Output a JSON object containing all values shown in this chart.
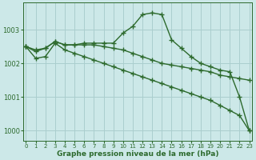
{
  "line1": {
    "x": [
      0,
      1,
      2,
      3,
      4,
      5,
      6,
      7,
      8,
      9,
      10,
      11,
      12,
      13,
      14,
      15,
      16,
      17,
      18,
      19,
      20,
      21,
      22,
      23
    ],
    "y": [
      1002.5,
      1002.35,
      1002.45,
      1002.65,
      1002.55,
      1002.55,
      1002.6,
      1002.6,
      1002.6,
      1002.6,
      1002.9,
      1003.1,
      1003.45,
      1003.5,
      1003.45,
      1002.7,
      1002.45,
      1002.2,
      1002.0,
      1001.9,
      1001.8,
      1001.75,
      1001.0,
      1000.0
    ]
  },
  "line2": {
    "x": [
      0,
      1,
      2,
      3,
      4,
      5,
      6,
      7,
      8,
      9,
      10,
      11,
      12,
      13,
      14,
      15,
      16,
      17,
      18,
      19,
      20,
      21,
      22,
      23
    ],
    "y": [
      1002.5,
      1002.4,
      1002.45,
      1002.65,
      1002.55,
      1002.55,
      1002.55,
      1002.55,
      1002.5,
      1002.45,
      1002.4,
      1002.3,
      1002.2,
      1002.1,
      1002.0,
      1001.95,
      1001.9,
      1001.85,
      1001.8,
      1001.75,
      1001.65,
      1001.6,
      1001.55,
      1001.5
    ]
  },
  "line3": {
    "x": [
      0,
      1,
      2,
      3,
      4,
      5,
      6,
      7,
      8,
      9,
      10,
      11,
      12,
      13,
      14,
      15,
      16,
      17,
      18,
      19,
      20,
      21,
      22,
      23
    ],
    "y": [
      1002.5,
      1002.15,
      1002.2,
      1002.6,
      1002.4,
      1002.3,
      1002.2,
      1002.1,
      1002.0,
      1001.9,
      1001.8,
      1001.7,
      1001.6,
      1001.5,
      1001.4,
      1001.3,
      1001.2,
      1001.1,
      1001.0,
      1000.9,
      1000.75,
      1000.6,
      1000.45,
      1000.0
    ]
  },
  "color": "#2d6a2d",
  "bg_color": "#cce8e8",
  "grid_color": "#aacece",
  "xlim": [
    -0.3,
    23.3
  ],
  "ylim": [
    999.7,
    1003.8
  ],
  "yticks": [
    1000,
    1001,
    1002,
    1003
  ],
  "xticks": [
    0,
    1,
    2,
    3,
    4,
    5,
    6,
    7,
    8,
    9,
    10,
    11,
    12,
    13,
    14,
    15,
    16,
    17,
    18,
    19,
    20,
    21,
    22,
    23
  ],
  "xlabel": "Graphe pression niveau de la mer (hPa)",
  "marker": "+",
  "markersize": 4,
  "linewidth": 1.0
}
